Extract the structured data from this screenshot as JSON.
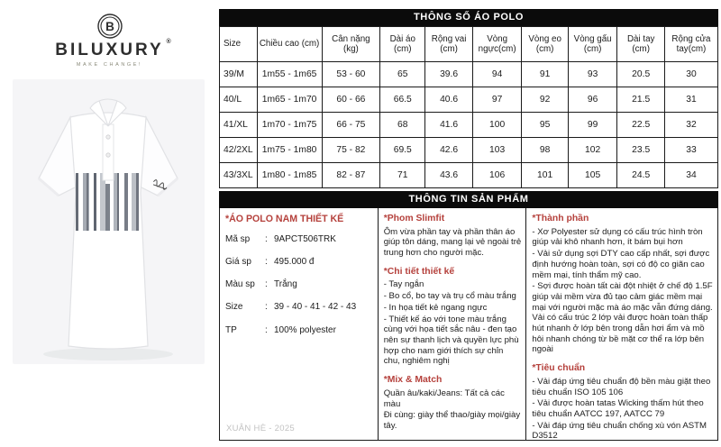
{
  "colors": {
    "accent_red": "#b5413c",
    "bar_black": "#0b0b0b",
    "footer_gray": "#c2c2c2"
  },
  "brand": {
    "monogram": "B",
    "name": "BILUXURY",
    "registered": "®",
    "tagline": "MAKE CHANGE!"
  },
  "product_photo": {
    "alt": "white short-sleeve polo shirt with gray striped chest band"
  },
  "spec_table": {
    "title": "THÔNG SỐ ÁO POLO",
    "columns": [
      "Size",
      "Chiều cao (cm)",
      "Cân nặng (kg)",
      "Dài áo (cm)",
      "Rộng vai (cm)",
      "Vòng ngực(cm)",
      "Vòng eo (cm)",
      "Vòng gấu (cm)",
      "Dài tay (cm)",
      "Rộng cửa tay(cm)"
    ],
    "rows": [
      [
        "39/M",
        "1m55 - 1m65",
        "53 - 60",
        "65",
        "39.6",
        "94",
        "91",
        "93",
        "20.5",
        "30"
      ],
      [
        "40/L",
        "1m65 - 1m70",
        "60 - 66",
        "66.5",
        "40.6",
        "97",
        "92",
        "96",
        "21.5",
        "31"
      ],
      [
        "41/XL",
        "1m70 - 1m75",
        "66 - 75",
        "68",
        "41.6",
        "100",
        "95",
        "99",
        "22.5",
        "32"
      ],
      [
        "42/2XL",
        "1m75 - 1m80",
        "75 - 82",
        "69.5",
        "42.6",
        "103",
        "98",
        "102",
        "23.5",
        "33"
      ],
      [
        "43/3XL",
        "1m80 - 1m85",
        "82 - 87",
        "71",
        "43.6",
        "106",
        "101",
        "105",
        "24.5",
        "34"
      ]
    ]
  },
  "info": {
    "title": "THÔNG TIN SẢN PHẨM",
    "left": {
      "heading": "*ÁO POLO NAM THIẾT KẾ",
      "fields": [
        {
          "label": "Mã sp",
          "value": "9APCT506TRK"
        },
        {
          "label": "Giá sp",
          "value": "495.000 đ"
        },
        {
          "label": "Màu sp",
          "value": "Trắng"
        },
        {
          "label": "Size",
          "value": "39 - 40 - 41 - 42 - 43"
        },
        {
          "label": "TP",
          "value": "100% polyester"
        }
      ],
      "footer": "XUÂN HÈ - 2025"
    },
    "middle": {
      "sections": [
        {
          "title": "*Phom Slimfit",
          "lines": [
            "Ôm vừa phần tay và phần thân áo giúp tôn dáng, mang lại vẻ ngoài trẻ trung hơn cho người mặc."
          ]
        },
        {
          "title": "*Chi tiết thiết kế",
          "lines": [
            "- Tay ngắn",
            "- Bo cổ, bo tay và trụ cổ màu trắng",
            "- In họa tiết kẻ ngang ngực",
            "- Thiết kế áo với tone màu trắng cùng với họa tiết sắc nâu - đen tạo nên sự thanh lịch và quyền lực phù hợp cho nam giới thích sự chỉn chu, nghiêm nghị"
          ]
        },
        {
          "title": "*Mix & Match",
          "lines": [
            "Quần âu/kaki/Jeans: Tất cả các màu",
            "Đi cùng: giày thể thao/giày mọi/giày tây."
          ]
        }
      ]
    },
    "right": {
      "sections": [
        {
          "title": "*Thành phần",
          "lines": [
            "- Xơ Polyester sử dụng có cấu trúc hình tròn giúp vải khô nhanh hơn, ít bám bụi hơn",
            "- Vải sử dụng sợi DTY cao cấp nhất, sợi được định hướng hoàn toàn, sợi có độ co giãn cao mềm mại, tính thẩm mỹ cao.",
            "- Sợi được hoàn tất cài đột nhiệt ở chế độ 1.5F giúp vải mềm vừa đủ tạo cảm giác mềm mại mại với người mặc mà áo mặc vẫn đứng dáng. Vải có cấu trúc 2 lớp vải được hoàn toàn thấp hút nhanh ở lớp bên trong dẫn hơi ẩm và mồ hôi nhanh chóng từ bề mặt cơ thể ra lớp bên ngoài"
          ]
        },
        {
          "title": "*Tiêu chuẩn",
          "lines": [
            "- Vải đáp ứng tiêu chuẩn độ bền màu giặt theo tiêu chuẩn ISO 105 106",
            "- Vải được hoàn tatas Wicking thấm hút theo tiêu chuẩn AATCC 197, AATCC 79",
            "- Vải đáp ứng tiêu chuẩn chống xù vón ASTM D3512"
          ]
        }
      ]
    }
  }
}
